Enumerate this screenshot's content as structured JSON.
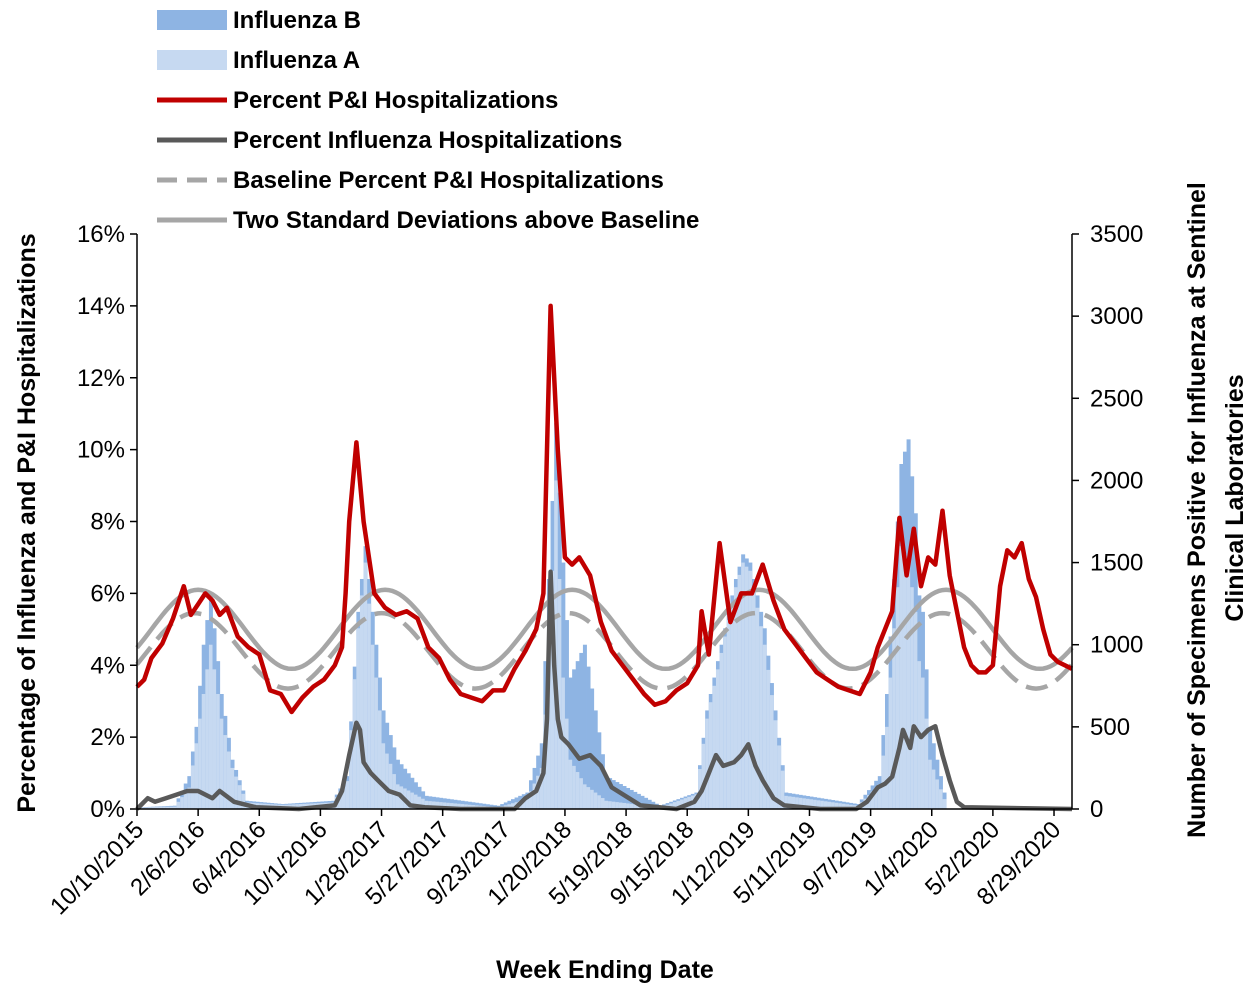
{
  "chart_data": {
    "type": "bar",
    "xlabel": "Week Ending Date",
    "ylabel_left": "Percentage of Influenza and P&I Hospitalizations",
    "ylabel_right": [
      "Number of Specimens Positive for Influenza at Sentinel",
      "Clinical Laboratories"
    ],
    "y_left": {
      "min": 0,
      "max": 16,
      "ticks": [
        "0%",
        "2%",
        "4%",
        "6%",
        "8%",
        "10%",
        "12%",
        "14%",
        "16%"
      ]
    },
    "y_right": {
      "min": 0,
      "max": 3500,
      "ticks": [
        "0",
        "500",
        "1000",
        "1500",
        "2000",
        "2500",
        "3000",
        "3500"
      ]
    },
    "x_tick_labels": [
      "10/10/2015",
      "2/6/2016",
      "6/4/2016",
      "10/1/2016",
      "1/28/2017",
      "5/27/2017",
      "9/23/2017",
      "1/20/2018",
      "5/19/2018",
      "9/15/2018",
      "1/12/2019",
      "5/11/2019",
      "9/7/2019",
      "1/4/2020",
      "5/2/2020",
      "8/29/2020"
    ],
    "colors": {
      "influenza_b": "#8EB4E3",
      "influenza_a": "#C6D9F1",
      "pi": "#C00000",
      "flu_hosp": "#595959",
      "baseline": "#A6A6A6",
      "threshold": "#A6A6A6"
    },
    "legend": [
      {
        "key": "influenza_b",
        "label": "Influenza B",
        "style": "bar"
      },
      {
        "key": "influenza_a",
        "label": "Influenza A",
        "style": "bar"
      },
      {
        "key": "pi",
        "label": "Percent P&I Hospitalizations",
        "style": "line"
      },
      {
        "key": "flu_hosp",
        "label": "Percent Influenza Hospitalizations",
        "style": "line"
      },
      {
        "key": "baseline",
        "label": "Baseline Percent P&I Hospitalizations",
        "style": "dashed"
      },
      {
        "key": "threshold",
        "label": "Two Standard Deviations above Baseline",
        "style": "line"
      }
    ],
    "legend_position": "top-left",
    "series": [
      {
        "name": "Influenza B (stacked total, specimens)",
        "key": "influenza_b",
        "x_week_index": [
          0,
          10,
          14,
          16,
          18,
          20,
          23,
          26,
          30,
          40,
          54,
          58,
          61,
          63,
          65,
          68,
          72,
          80,
          100,
          108,
          112,
          114,
          116,
          118,
          120,
          124,
          130,
          145,
          155,
          158,
          161,
          166,
          168,
          170,
          174,
          180,
          200,
          206,
          208,
          210,
          212,
          214,
          216,
          217,
          218,
          220,
          225
        ],
        "values": [
          10,
          20,
          200,
          500,
          1000,
          1300,
          700,
          300,
          50,
          30,
          50,
          200,
          1200,
          1600,
          1200,
          600,
          300,
          80,
          20,
          100,
          400,
          1400,
          2350,
          1500,
          800,
          1000,
          200,
          20,
          100,
          600,
          900,
          1400,
          1550,
          1500,
          1100,
          100,
          30,
          200,
          700,
          1400,
          2100,
          2250,
          1800,
          1300,
          1200,
          500,
          0
        ]
      },
      {
        "name": "Influenza A (specimens)",
        "key": "influenza_a",
        "x_week_index": [
          0,
          10,
          14,
          16,
          18,
          20,
          23,
          26,
          30,
          40,
          54,
          58,
          61,
          63,
          65,
          68,
          72,
          80,
          100,
          108,
          112,
          114,
          116,
          118,
          120,
          124,
          130,
          145,
          155,
          158,
          161,
          166,
          168,
          170,
          174,
          180,
          200,
          206,
          208,
          210,
          212,
          214,
          216,
          217,
          218,
          220,
          225
        ],
        "values": [
          10,
          15,
          130,
          400,
          700,
          1000,
          550,
          250,
          40,
          25,
          40,
          170,
          1100,
          1500,
          1000,
          400,
          150,
          50,
          10,
          60,
          250,
          900,
          2000,
          800,
          300,
          150,
          50,
          10,
          90,
          550,
          850,
          1350,
          1500,
          1450,
          1000,
          80,
          20,
          150,
          500,
          1100,
          1600,
          1500,
          1200,
          900,
          800,
          300,
          0
        ]
      },
      {
        "name": "Percent P&I Hospitalizations",
        "key": "pi",
        "x_week_index": [
          0,
          2,
          4,
          7,
          10,
          13,
          15,
          17,
          19,
          21,
          23,
          25,
          28,
          31,
          34,
          37,
          40,
          43,
          46,
          49,
          52,
          55,
          57,
          58,
          59,
          61,
          63,
          66,
          69,
          72,
          75,
          78,
          81,
          84,
          87,
          90,
          93,
          96,
          99,
          102,
          105,
          108,
          111,
          113,
          114,
          115,
          117,
          119,
          121,
          123,
          126,
          129,
          132,
          135,
          138,
          141,
          144,
          147,
          150,
          153,
          156,
          157,
          159,
          162,
          165,
          168,
          171,
          174,
          177,
          180,
          183,
          186,
          189,
          192,
          195,
          198,
          201,
          204,
          206,
          208,
          210,
          212,
          214,
          216,
          218,
          220,
          222,
          224,
          226,
          228,
          230,
          232,
          234,
          236,
          238,
          240,
          242,
          244,
          246,
          248,
          250,
          252,
          254,
          256,
          258,
          260
        ],
        "values": [
          3.4,
          3.6,
          4.2,
          4.6,
          5.3,
          6.2,
          5.4,
          5.7,
          6.0,
          5.8,
          5.4,
          5.6,
          4.8,
          4.5,
          4.3,
          3.3,
          3.2,
          2.7,
          3.1,
          3.4,
          3.6,
          4.0,
          4.5,
          6.0,
          8.0,
          10.2,
          8.0,
          6.0,
          5.6,
          5.4,
          5.5,
          5.3,
          4.5,
          4.2,
          3.6,
          3.2,
          3.1,
          3.0,
          3.3,
          3.3,
          3.9,
          4.4,
          5.0,
          6.0,
          10.0,
          14.0,
          10.0,
          7.0,
          6.8,
          7.0,
          6.5,
          5.2,
          4.4,
          4.0,
          3.6,
          3.2,
          2.9,
          3.0,
          3.3,
          3.5,
          4.0,
          5.5,
          4.3,
          7.4,
          5.2,
          6.0,
          6.0,
          6.8,
          5.8,
          5.0,
          4.6,
          4.2,
          3.8,
          3.6,
          3.4,
          3.3,
          3.2,
          3.8,
          4.5,
          5.0,
          5.5,
          8.1,
          6.5,
          7.8,
          6.2,
          7.0,
          6.8,
          8.3,
          6.5,
          5.5,
          4.5,
          4.0,
          3.8,
          3.8,
          4.0,
          6.2,
          7.2,
          7.0,
          7.4,
          6.4,
          5.9,
          5.0,
          4.3,
          4.1,
          4.0,
          3.9
        ]
      },
      {
        "name": "Percent Influenza Hospitalizations",
        "key": "flu_hosp",
        "x_week_index": [
          0,
          3,
          5,
          8,
          11,
          14,
          17,
          19,
          21,
          23,
          27,
          33,
          45,
          55,
          57,
          59,
          61,
          62,
          63,
          65,
          67,
          70,
          73,
          76,
          80,
          90,
          105,
          108,
          111,
          113,
          114,
          115,
          116,
          117,
          118,
          120,
          123,
          126,
          129,
          132,
          140,
          150,
          155,
          157,
          159,
          161,
          163,
          166,
          168,
          170,
          172,
          174,
          177,
          180,
          190,
          200,
          203,
          206,
          208,
          210,
          212,
          213,
          215,
          216,
          218,
          220,
          222,
          224,
          226,
          228,
          230,
          260
        ],
        "values": [
          0.0,
          0.3,
          0.2,
          0.3,
          0.4,
          0.5,
          0.5,
          0.4,
          0.3,
          0.5,
          0.2,
          0.05,
          0.0,
          0.1,
          0.5,
          1.5,
          2.4,
          2.2,
          1.3,
          1.0,
          0.8,
          0.5,
          0.4,
          0.1,
          0.05,
          0.0,
          0.0,
          0.3,
          0.5,
          1.0,
          2.5,
          6.6,
          4.0,
          2.5,
          2.0,
          1.8,
          1.4,
          1.5,
          1.2,
          0.6,
          0.1,
          0.0,
          0.2,
          0.5,
          1.0,
          1.5,
          1.2,
          1.3,
          1.5,
          1.8,
          1.2,
          0.8,
          0.3,
          0.1,
          0.0,
          0.0,
          0.2,
          0.6,
          0.7,
          0.9,
          1.7,
          2.2,
          1.7,
          2.3,
          2.0,
          2.2,
          2.3,
          1.5,
          0.8,
          0.2,
          0.05,
          0.0
        ]
      },
      {
        "name": "Baseline Percent P&I Hospitalizations",
        "key": "baseline",
        "formula": "mid 4.4, amplitude 1.05, period 52 weeks, peak week 16",
        "x_week_index": [
          0,
          260
        ],
        "values": [
          3.3,
          3.2
        ]
      },
      {
        "name": "Two Standard Deviations above Baseline",
        "key": "threshold",
        "formula": "mid 5.0, amplitude 1.1, period 52 weeks, peak week 17",
        "x_week_index": [
          0,
          260
        ],
        "values": [
          3.9,
          3.8
        ]
      }
    ]
  }
}
